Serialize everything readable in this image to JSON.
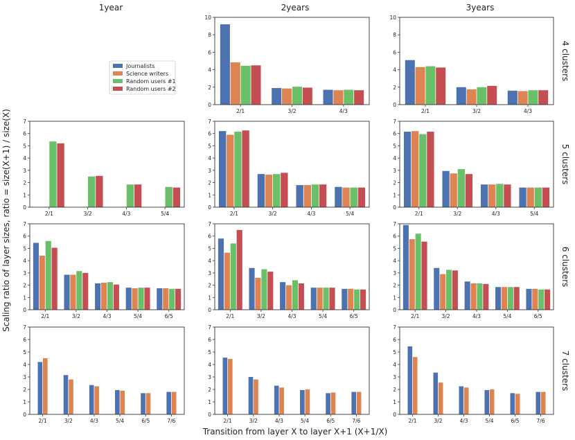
{
  "figure": {
    "col_titles": [
      "1year",
      "2years",
      "3years"
    ],
    "row_titles": [
      "4 clusters",
      "5 clusters",
      "6 clusters",
      "7 clusters"
    ],
    "xlabel": "Transition from layer X to layer X+1 (X+1/X)",
    "ylabel": "Scaling ratio of layer sizes, ratio = size(X+1) / size(X)",
    "legend": [
      {
        "name": "Journalists",
        "color": "#4c72b0"
      },
      {
        "name": "Science writers",
        "color": "#dd8452"
      },
      {
        "name": "Random users #1",
        "color": "#6abf69"
      },
      {
        "name": "Random users #2",
        "color": "#c44e52"
      }
    ]
  },
  "chart_data": [
    {
      "type": "bar",
      "title": "2years / 4 clusters",
      "ylim": [
        0,
        10
      ],
      "yticks": [
        0,
        2,
        4,
        6,
        8,
        10
      ],
      "categories": [
        "2/1",
        "3/2",
        "4/3"
      ],
      "series": [
        {
          "name": "Journalists",
          "values": [
            9.2,
            1.9,
            1.7
          ]
        },
        {
          "name": "Science writers",
          "values": [
            4.85,
            1.85,
            1.65
          ]
        },
        {
          "name": "Random users #1",
          "values": [
            4.45,
            2.05,
            1.7
          ]
        },
        {
          "name": "Random users #2",
          "values": [
            4.5,
            1.95,
            1.65
          ]
        }
      ]
    },
    {
      "type": "bar",
      "title": "3years / 4 clusters",
      "ylim": [
        0,
        10
      ],
      "yticks": [
        0,
        2,
        4,
        6,
        8,
        10
      ],
      "categories": [
        "2/1",
        "3/2",
        "4/3"
      ],
      "series": [
        {
          "name": "Journalists",
          "values": [
            5.1,
            2.0,
            1.6
          ]
        },
        {
          "name": "Science writers",
          "values": [
            4.3,
            1.75,
            1.55
          ]
        },
        {
          "name": "Random users #1",
          "values": [
            4.4,
            2.0,
            1.65
          ]
        },
        {
          "name": "Random users #2",
          "values": [
            4.25,
            2.15,
            1.65
          ]
        }
      ]
    },
    {
      "type": "bar",
      "title": "1year / 5 clusters",
      "ylim": [
        0,
        7
      ],
      "yticks": [
        0,
        1,
        2,
        3,
        4,
        5,
        6,
        7
      ],
      "categories": [
        "2/1",
        "3/2",
        "4/3",
        "5/4"
      ],
      "series": [
        {
          "name": "Journalists",
          "values": [
            null,
            null,
            null,
            null
          ]
        },
        {
          "name": "Science writers",
          "values": [
            null,
            null,
            null,
            null
          ]
        },
        {
          "name": "Random users #1",
          "values": [
            5.35,
            2.5,
            1.85,
            1.65
          ]
        },
        {
          "name": "Random users #2",
          "values": [
            5.2,
            2.55,
            1.85,
            1.6
          ]
        }
      ]
    },
    {
      "type": "bar",
      "title": "2years / 5 clusters",
      "ylim": [
        0,
        7
      ],
      "yticks": [
        0,
        1,
        2,
        3,
        4,
        5,
        6,
        7
      ],
      "categories": [
        "2/1",
        "3/2",
        "4/3",
        "5/4"
      ],
      "series": [
        {
          "name": "Journalists",
          "values": [
            6.2,
            2.7,
            1.8,
            1.65
          ]
        },
        {
          "name": "Science writers",
          "values": [
            5.9,
            2.65,
            1.8,
            1.6
          ]
        },
        {
          "name": "Random users #1",
          "values": [
            6.15,
            2.7,
            1.85,
            1.6
          ]
        },
        {
          "name": "Random users #2",
          "values": [
            6.25,
            2.8,
            1.85,
            1.6
          ]
        }
      ]
    },
    {
      "type": "bar",
      "title": "3years / 5 clusters",
      "ylim": [
        0,
        7
      ],
      "yticks": [
        0,
        1,
        2,
        3,
        4,
        5,
        6,
        7
      ],
      "categories": [
        "2/1",
        "3/2",
        "4/3",
        "5/4"
      ],
      "series": [
        {
          "name": "Journalists",
          "values": [
            6.15,
            2.95,
            1.85,
            1.6
          ]
        },
        {
          "name": "Science writers",
          "values": [
            6.2,
            2.75,
            1.85,
            1.6
          ]
        },
        {
          "name": "Random users #1",
          "values": [
            5.95,
            3.1,
            1.9,
            1.6
          ]
        },
        {
          "name": "Random users #2",
          "values": [
            6.15,
            2.7,
            1.85,
            1.6
          ]
        }
      ]
    },
    {
      "type": "bar",
      "title": "1year / 6 clusters",
      "ylim": [
        0,
        7
      ],
      "yticks": [
        0,
        1,
        2,
        3,
        4,
        5,
        6,
        7
      ],
      "categories": [
        "2/1",
        "3/2",
        "4/3",
        "5/4",
        "6/5"
      ],
      "series": [
        {
          "name": "Journalists",
          "values": [
            5.45,
            2.85,
            2.15,
            1.8,
            1.75
          ]
        },
        {
          "name": "Science writers",
          "values": [
            4.4,
            2.85,
            2.2,
            1.75,
            1.75
          ]
        },
        {
          "name": "Random users #1",
          "values": [
            5.6,
            3.15,
            2.25,
            1.8,
            1.7
          ]
        },
        {
          "name": "Random users #2",
          "values": [
            5.05,
            3.0,
            2.05,
            1.8,
            1.7
          ]
        }
      ]
    },
    {
      "type": "bar",
      "title": "2years / 6 clusters",
      "ylim": [
        0,
        7
      ],
      "yticks": [
        0,
        1,
        2,
        3,
        4,
        5,
        6,
        7
      ],
      "categories": [
        "2/1",
        "3/2",
        "4/3",
        "5/4",
        "6/5"
      ],
      "series": [
        {
          "name": "Journalists",
          "values": [
            5.8,
            3.4,
            2.25,
            1.8,
            1.7
          ]
        },
        {
          "name": "Science writers",
          "values": [
            4.65,
            2.6,
            2.0,
            1.8,
            1.7
          ]
        },
        {
          "name": "Random users #1",
          "values": [
            5.4,
            3.3,
            2.4,
            1.8,
            1.65
          ]
        },
        {
          "name": "Random users #2",
          "values": [
            6.5,
            3.1,
            2.15,
            1.8,
            1.65
          ]
        }
      ]
    },
    {
      "type": "bar",
      "title": "3years / 6 clusters",
      "ylim": [
        0,
        7
      ],
      "yticks": [
        0,
        1,
        2,
        3,
        4,
        5,
        6,
        7
      ],
      "categories": [
        "2/1",
        "3/2",
        "4/3",
        "5/4",
        "6/5"
      ],
      "series": [
        {
          "name": "Journalists",
          "values": [
            6.9,
            3.4,
            2.3,
            1.85,
            1.7
          ]
        },
        {
          "name": "Science writers",
          "values": [
            5.75,
            2.9,
            2.15,
            1.85,
            1.7
          ]
        },
        {
          "name": "Random users #1",
          "values": [
            6.2,
            3.25,
            2.15,
            1.85,
            1.65
          ]
        },
        {
          "name": "Random users #2",
          "values": [
            5.55,
            3.2,
            2.1,
            1.85,
            1.65
          ]
        }
      ]
    },
    {
      "type": "bar",
      "title": "1year / 7 clusters",
      "ylim": [
        0,
        7
      ],
      "yticks": [
        0,
        1,
        2,
        3,
        4,
        5,
        6,
        7
      ],
      "categories": [
        "2/1",
        "3/2",
        "4/3",
        "5/4",
        "6/5",
        "7/6"
      ],
      "series": [
        {
          "name": "Journalists",
          "values": [
            4.2,
            3.15,
            2.35,
            1.95,
            1.7,
            1.8
          ]
        },
        {
          "name": "Science writers",
          "values": [
            4.5,
            2.8,
            2.25,
            1.9,
            1.7,
            1.8
          ]
        }
      ]
    },
    {
      "type": "bar",
      "title": "2years / 7 clusters",
      "ylim": [
        0,
        7
      ],
      "yticks": [
        0,
        1,
        2,
        3,
        4,
        5,
        6,
        7
      ],
      "categories": [
        "2/1",
        "3/2",
        "4/3",
        "5/4",
        "6/5",
        "7/6"
      ],
      "series": [
        {
          "name": "Journalists",
          "values": [
            4.55,
            3.0,
            2.3,
            1.95,
            1.7,
            1.8
          ]
        },
        {
          "name": "Science writers",
          "values": [
            4.45,
            2.8,
            2.15,
            2.0,
            1.75,
            1.8
          ]
        }
      ]
    },
    {
      "type": "bar",
      "title": "3years / 7 clusters",
      "ylim": [
        0,
        7
      ],
      "yticks": [
        0,
        1,
        2,
        3,
        4,
        5,
        6,
        7
      ],
      "categories": [
        "2/1",
        "3/2",
        "4/3",
        "5/4",
        "6/5",
        "7/6"
      ],
      "series": [
        {
          "name": "Journalists",
          "values": [
            5.45,
            3.35,
            2.25,
            1.95,
            1.7,
            1.8
          ]
        },
        {
          "name": "Science writers",
          "values": [
            4.6,
            2.55,
            2.15,
            2.0,
            1.65,
            1.8
          ]
        }
      ]
    }
  ]
}
